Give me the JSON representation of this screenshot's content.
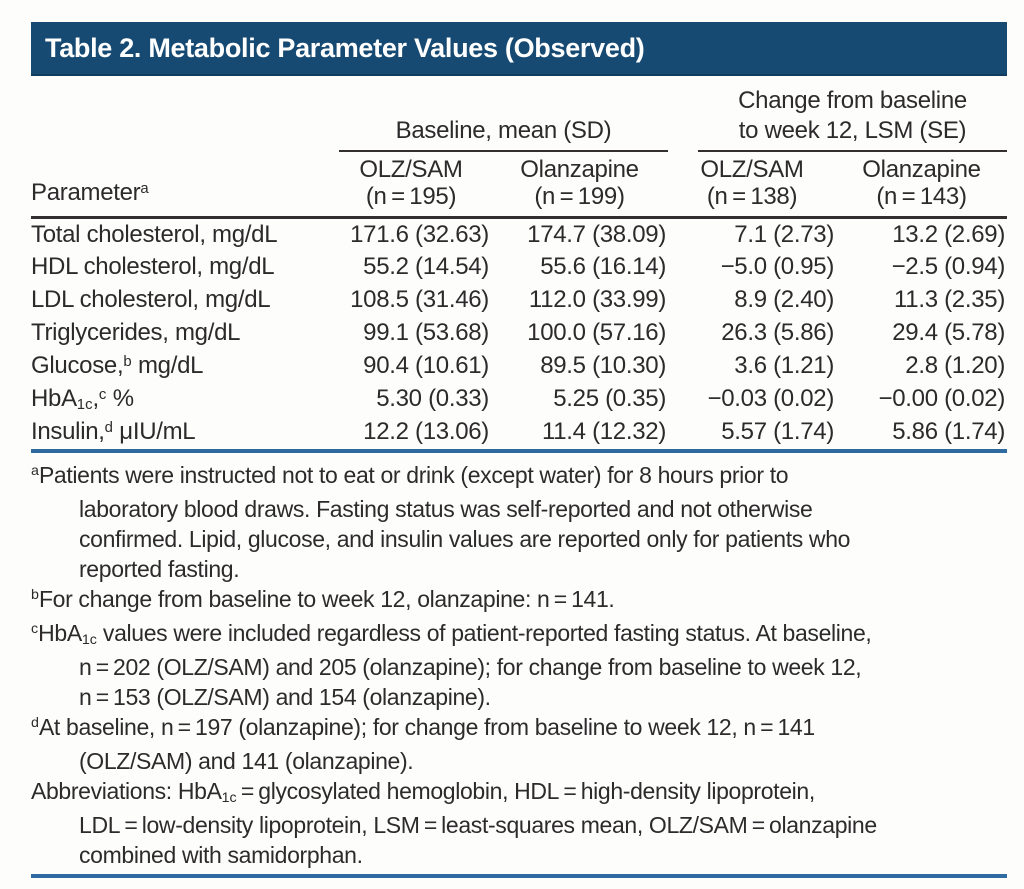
{
  "title": "Table 2. Metabolic Parameter Values (Observed)",
  "colors": {
    "title_bar_bg": "#164a73",
    "title_text": "#ffffff",
    "rule_blue": "#2e6ba0",
    "rule_dark": "#332f30",
    "body_text": "#2d2a2b"
  },
  "table": {
    "param_header": "Parameter",
    "param_header_sup": "a",
    "groups": [
      {
        "label": "Baseline, mean (SD)"
      },
      {
        "label": "Change from baseline\nto week 12, LSM (SE)"
      }
    ],
    "columns": [
      {
        "drug": "OLZ/SAM",
        "n": "(n = 195)"
      },
      {
        "drug": "Olanzapine",
        "n": "(n = 199)"
      },
      {
        "drug": "OLZ/SAM",
        "n": "(n = 138)"
      },
      {
        "drug": "Olanzapine",
        "n": "(n = 143)"
      }
    ],
    "rows": [
      {
        "param": {
          "pre": "Total cholesterol, mg/dL",
          "sub": "",
          "mid": "",
          "sup": "",
          "post": ""
        },
        "values": [
          "171.6 (32.63)",
          "174.7 (38.09)",
          "7.1 (2.73)",
          "13.2 (2.69)"
        ]
      },
      {
        "param": {
          "pre": "HDL cholesterol, mg/dL",
          "sub": "",
          "mid": "",
          "sup": "",
          "post": ""
        },
        "values": [
          "55.2 (14.54)",
          "55.6 (16.14)",
          "−5.0 (0.95)",
          "−2.5 (0.94)"
        ]
      },
      {
        "param": {
          "pre": "LDL cholesterol, mg/dL",
          "sub": "",
          "mid": "",
          "sup": "",
          "post": ""
        },
        "values": [
          "108.5 (31.46)",
          "112.0 (33.99)",
          "8.9 (2.40)",
          "11.3 (2.35)"
        ]
      },
      {
        "param": {
          "pre": "Triglycerides, mg/dL",
          "sub": "",
          "mid": "",
          "sup": "",
          "post": ""
        },
        "values": [
          "99.1 (53.68)",
          "100.0 (57.16)",
          "26.3 (5.86)",
          "29.4 (5.78)"
        ]
      },
      {
        "param": {
          "pre": "Glucose,",
          "sub": "",
          "mid": "",
          "sup": "b",
          "post": " mg/dL"
        },
        "values": [
          "90.4 (10.61)",
          "89.5 (10.30)",
          "3.6 (1.21)",
          "2.8 (1.20)"
        ]
      },
      {
        "param": {
          "pre": "HbA",
          "sub": "1c",
          "mid": ",",
          "sup": "c",
          "post": " %"
        },
        "values": [
          "5.30 (0.33)",
          "5.25 (0.35)",
          "−0.03 (0.02)",
          "−0.00 (0.02)"
        ]
      },
      {
        "param": {
          "pre": "Insulin,",
          "sub": "",
          "mid": "",
          "sup": "d",
          "post": " μIU/mL"
        },
        "values": [
          "12.2 (13.06)",
          "11.4 (12.32)",
          "5.57 (1.74)",
          "5.86 (1.74)"
        ]
      }
    ]
  },
  "footnotes": [
    {
      "sup": "a",
      "pre": "",
      "sub": "",
      "text": "Patients were instructed not to eat or drink (except water) for 8 hours prior to\nlaboratory blood draws. Fasting status was self-reported and not otherwise\nconfirmed. Lipid, glucose, and insulin values are reported only for patients who\nreported fasting."
    },
    {
      "sup": "b",
      "pre": "",
      "sub": "",
      "text": "For change from baseline to week 12, olanzapine: n = 141."
    },
    {
      "sup": "c",
      "pre": "HbA",
      "sub": "1c",
      "text": " values were included regardless of patient-reported fasting status. At baseline,\nn = 202 (OLZ/SAM) and 205 (olanzapine); for change from baseline to week 12,\nn = 153 (OLZ/SAM) and 154 (olanzapine)."
    },
    {
      "sup": "d",
      "pre": "",
      "sub": "",
      "text": "At baseline, n = 197 (olanzapine); for change from baseline to week 12, n = 141\n(OLZ/SAM) and 141 (olanzapine)."
    },
    {
      "sup": "",
      "pre": "Abbreviations: HbA",
      "sub": "1c",
      "text": " = glycosylated hemoglobin, HDL = high-density lipoprotein,\nLDL = low-density lipoprotein, LSM = least-squares mean, OLZ/SAM = olanzapine\ncombined with samidorphan."
    }
  ]
}
